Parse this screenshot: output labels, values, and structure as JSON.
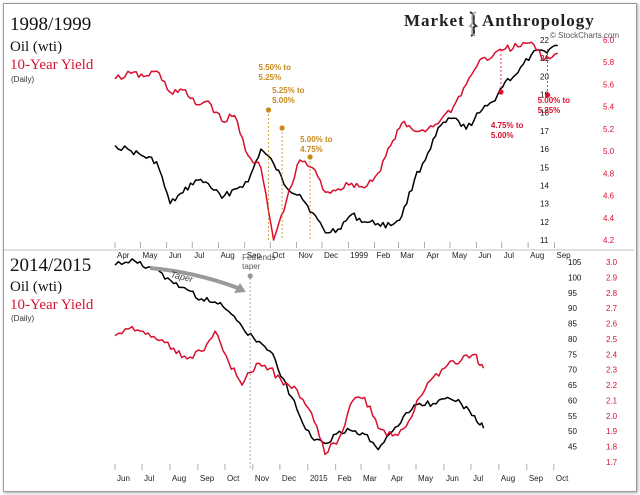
{
  "brand": {
    "name_left": "Market",
    "name_right": "Anthropology",
    "credit": "© StockCharts.com"
  },
  "chart_data": [
    {
      "type": "line",
      "title": "1998/1999",
      "legend": [
        "Oil (wti)",
        "10-Year Yield",
        "(Daily)"
      ],
      "series": [
        {
          "name": "Oil (wti)",
          "color": "#000000",
          "axis": "left",
          "x": [
            "1998-04-01",
            "1998-04-20",
            "1998-05-05",
            "1998-05-20",
            "1998-06-05",
            "1998-06-20",
            "1998-07-05",
            "1998-07-20",
            "1998-08-05",
            "1998-08-20",
            "1998-09-05",
            "1998-09-20",
            "1998-10-05",
            "1998-10-20",
            "1998-11-05",
            "1998-11-20",
            "1998-12-05",
            "1998-12-20",
            "1999-01-05",
            "1999-01-20",
            "1999-02-05",
            "1999-02-20",
            "1999-03-05",
            "1999-03-20",
            "1999-04-05",
            "1999-04-20",
            "1999-05-05",
            "1999-05-20",
            "1999-06-05",
            "1999-06-20",
            "1999-07-05",
            "1999-07-20",
            "1999-08-05",
            "1999-08-20",
            "1999-09-05"
          ],
          "values": [
            16.2,
            15.9,
            15.6,
            15.3,
            13.0,
            13.6,
            14.3,
            14.1,
            13.3,
            13.8,
            14.2,
            16.0,
            15.2,
            13.9,
            13.5,
            12.5,
            11.4,
            11.6,
            12.4,
            12.0,
            11.9,
            11.8,
            12.3,
            14.3,
            15.8,
            17.3,
            17.7,
            17.1,
            18.0,
            18.6,
            19.7,
            20.2,
            21.2,
            21.4,
            21.7
          ]
        },
        {
          "name": "10-Year Yield",
          "color": "#d90f2e",
          "axis": "right",
          "x": [
            "1998-04-01",
            "1998-04-20",
            "1998-05-05",
            "1998-05-20",
            "1998-06-05",
            "1998-06-20",
            "1998-07-05",
            "1998-07-20",
            "1998-08-05",
            "1998-08-20",
            "1998-09-05",
            "1998-09-20",
            "1998-10-05",
            "1998-10-20",
            "1998-11-05",
            "1998-11-20",
            "1998-12-05",
            "1998-12-20",
            "1999-01-05",
            "1999-01-20",
            "1999-02-05",
            "1999-02-20",
            "1999-03-05",
            "1999-03-20",
            "1999-04-05",
            "1999-04-20",
            "1999-05-05",
            "1999-05-20",
            "1999-06-05",
            "1999-06-20",
            "1999-07-05",
            "1999-07-20",
            "1999-08-05",
            "1999-08-20",
            "1999-09-05"
          ],
          "values": [
            5.65,
            5.7,
            5.67,
            5.72,
            5.53,
            5.55,
            5.42,
            5.45,
            5.27,
            5.32,
            4.96,
            4.85,
            4.2,
            4.55,
            4.92,
            4.85,
            4.63,
            4.66,
            4.71,
            4.67,
            4.8,
            5.05,
            5.25,
            5.18,
            5.2,
            5.28,
            5.4,
            5.6,
            5.82,
            5.85,
            5.92,
            5.94,
            5.98,
            5.82,
            5.88
          ]
        }
      ],
      "y_left": {
        "ticks": [
          "11",
          "12",
          "13",
          "14",
          "15",
          "16",
          "17",
          "18",
          "19",
          "20",
          "21",
          "22"
        ],
        "range": [
          11,
          22
        ]
      },
      "y_right": {
        "ticks": [
          "4.2",
          "4.4",
          "4.6",
          "4.8",
          "5.0",
          "5.2",
          "5.4",
          "5.6",
          "5.8",
          "6.0"
        ],
        "range": [
          4.2,
          6.0
        ]
      },
      "x_ticks": [
        "Apr",
        "May",
        "Jun",
        "Jul",
        "Aug",
        "Sep",
        "Oct",
        "Nov",
        "Dec",
        "1999",
        "Feb",
        "Mar",
        "Apr",
        "May",
        "Jun",
        "Jul",
        "Aug",
        "Sep"
      ],
      "annotations": [
        {
          "lines": [
            "5.50% to",
            "5.25%"
          ],
          "date": "1998-09-29",
          "color": "#c9891a"
        },
        {
          "lines": [
            "5.25% to",
            "5.00%"
          ],
          "date": "1998-10-15",
          "color": "#c9891a"
        },
        {
          "lines": [
            "5.00% to",
            "4.75%"
          ],
          "date": "1998-11-17",
          "color": "#c9891a"
        },
        {
          "lines": [
            "4.75% to",
            "5.00%"
          ],
          "date": "1999-06-30",
          "color": "#d90f2e"
        },
        {
          "lines": [
            "5.00% to",
            "5.25%"
          ],
          "date": "1999-08-24",
          "color": "#d90f2e"
        }
      ]
    },
    {
      "type": "line",
      "title": "2014/2015",
      "legend": [
        "Oil (wti)",
        "10-Year Yield",
        "(Daily)"
      ],
      "series": [
        {
          "name": "Oil (wti)",
          "color": "#000000",
          "axis": "left",
          "x": [
            "2014-06-01",
            "2014-06-20",
            "2014-07-05",
            "2014-07-20",
            "2014-08-05",
            "2014-08-20",
            "2014-09-05",
            "2014-09-20",
            "2014-10-05",
            "2014-10-20",
            "2014-11-05",
            "2014-11-20",
            "2014-12-05",
            "2014-12-20",
            "2015-01-05",
            "2015-01-20",
            "2015-02-05",
            "2015-02-20",
            "2015-03-05",
            "2015-03-20",
            "2015-04-05",
            "2015-04-20",
            "2015-05-05",
            "2015-05-20",
            "2015-06-05",
            "2015-06-20",
            "2015-07-05",
            "2015-07-15"
          ],
          "values": [
            104,
            106,
            103,
            102,
            98,
            96,
            93,
            92,
            89,
            84,
            79,
            76,
            67,
            57,
            48,
            46,
            50,
            50,
            49,
            44,
            50,
            56,
            59,
            59,
            61,
            59,
            55,
            51
          ]
        },
        {
          "name": "10-Year Yield",
          "color": "#d90f2e",
          "axis": "right",
          "x": [
            "2014-06-01",
            "2014-06-20",
            "2014-07-05",
            "2014-07-20",
            "2014-08-05",
            "2014-08-20",
            "2014-09-05",
            "2014-09-20",
            "2014-10-05",
            "2014-10-20",
            "2014-11-05",
            "2014-11-20",
            "2014-12-05",
            "2014-12-20",
            "2015-01-05",
            "2015-01-20",
            "2015-02-05",
            "2015-02-20",
            "2015-03-05",
            "2015-03-20",
            "2015-04-05",
            "2015-04-20",
            "2015-05-05",
            "2015-05-20",
            "2015-06-05",
            "2015-06-20",
            "2015-07-05",
            "2015-07-15"
          ],
          "values": [
            2.52,
            2.58,
            2.53,
            2.49,
            2.44,
            2.37,
            2.42,
            2.55,
            2.35,
            2.2,
            2.34,
            2.31,
            2.2,
            2.17,
            2.02,
            1.75,
            1.86,
            2.1,
            2.12,
            1.92,
            1.87,
            1.93,
            2.12,
            2.25,
            2.33,
            2.36,
            2.4,
            2.31
          ]
        }
      ],
      "y_left": {
        "ticks": [
          "45",
          "50",
          "55",
          "60",
          "65",
          "70",
          "75",
          "80",
          "85",
          "90",
          "95",
          "100",
          "105"
        ],
        "range": [
          40,
          105
        ]
      },
      "y_right": {
        "ticks": [
          "1.7",
          "1.8",
          "1.9",
          "2.0",
          "2.1",
          "2.2",
          "2.3",
          "2.4",
          "2.5",
          "2.6",
          "2.7",
          "2.8",
          "2.9",
          "3.0"
        ],
        "range": [
          1.7,
          3.0
        ]
      },
      "x_ticks": [
        "Jun",
        "Jul",
        "Aug",
        "Sep",
        "Oct",
        "Nov",
        "Dec",
        "2015",
        "Feb",
        "Mar",
        "Apr",
        "May",
        "Jun",
        "Jul",
        "Aug",
        "Sep",
        "Oct"
      ],
      "annotations": [
        {
          "lines": [
            "Taper"
          ],
          "date": "2014-06-15",
          "color": "#888888"
        },
        {
          "lines": [
            "Fed ends",
            "taper"
          ],
          "date": "2014-10-29",
          "color": "#888888"
        }
      ]
    }
  ]
}
